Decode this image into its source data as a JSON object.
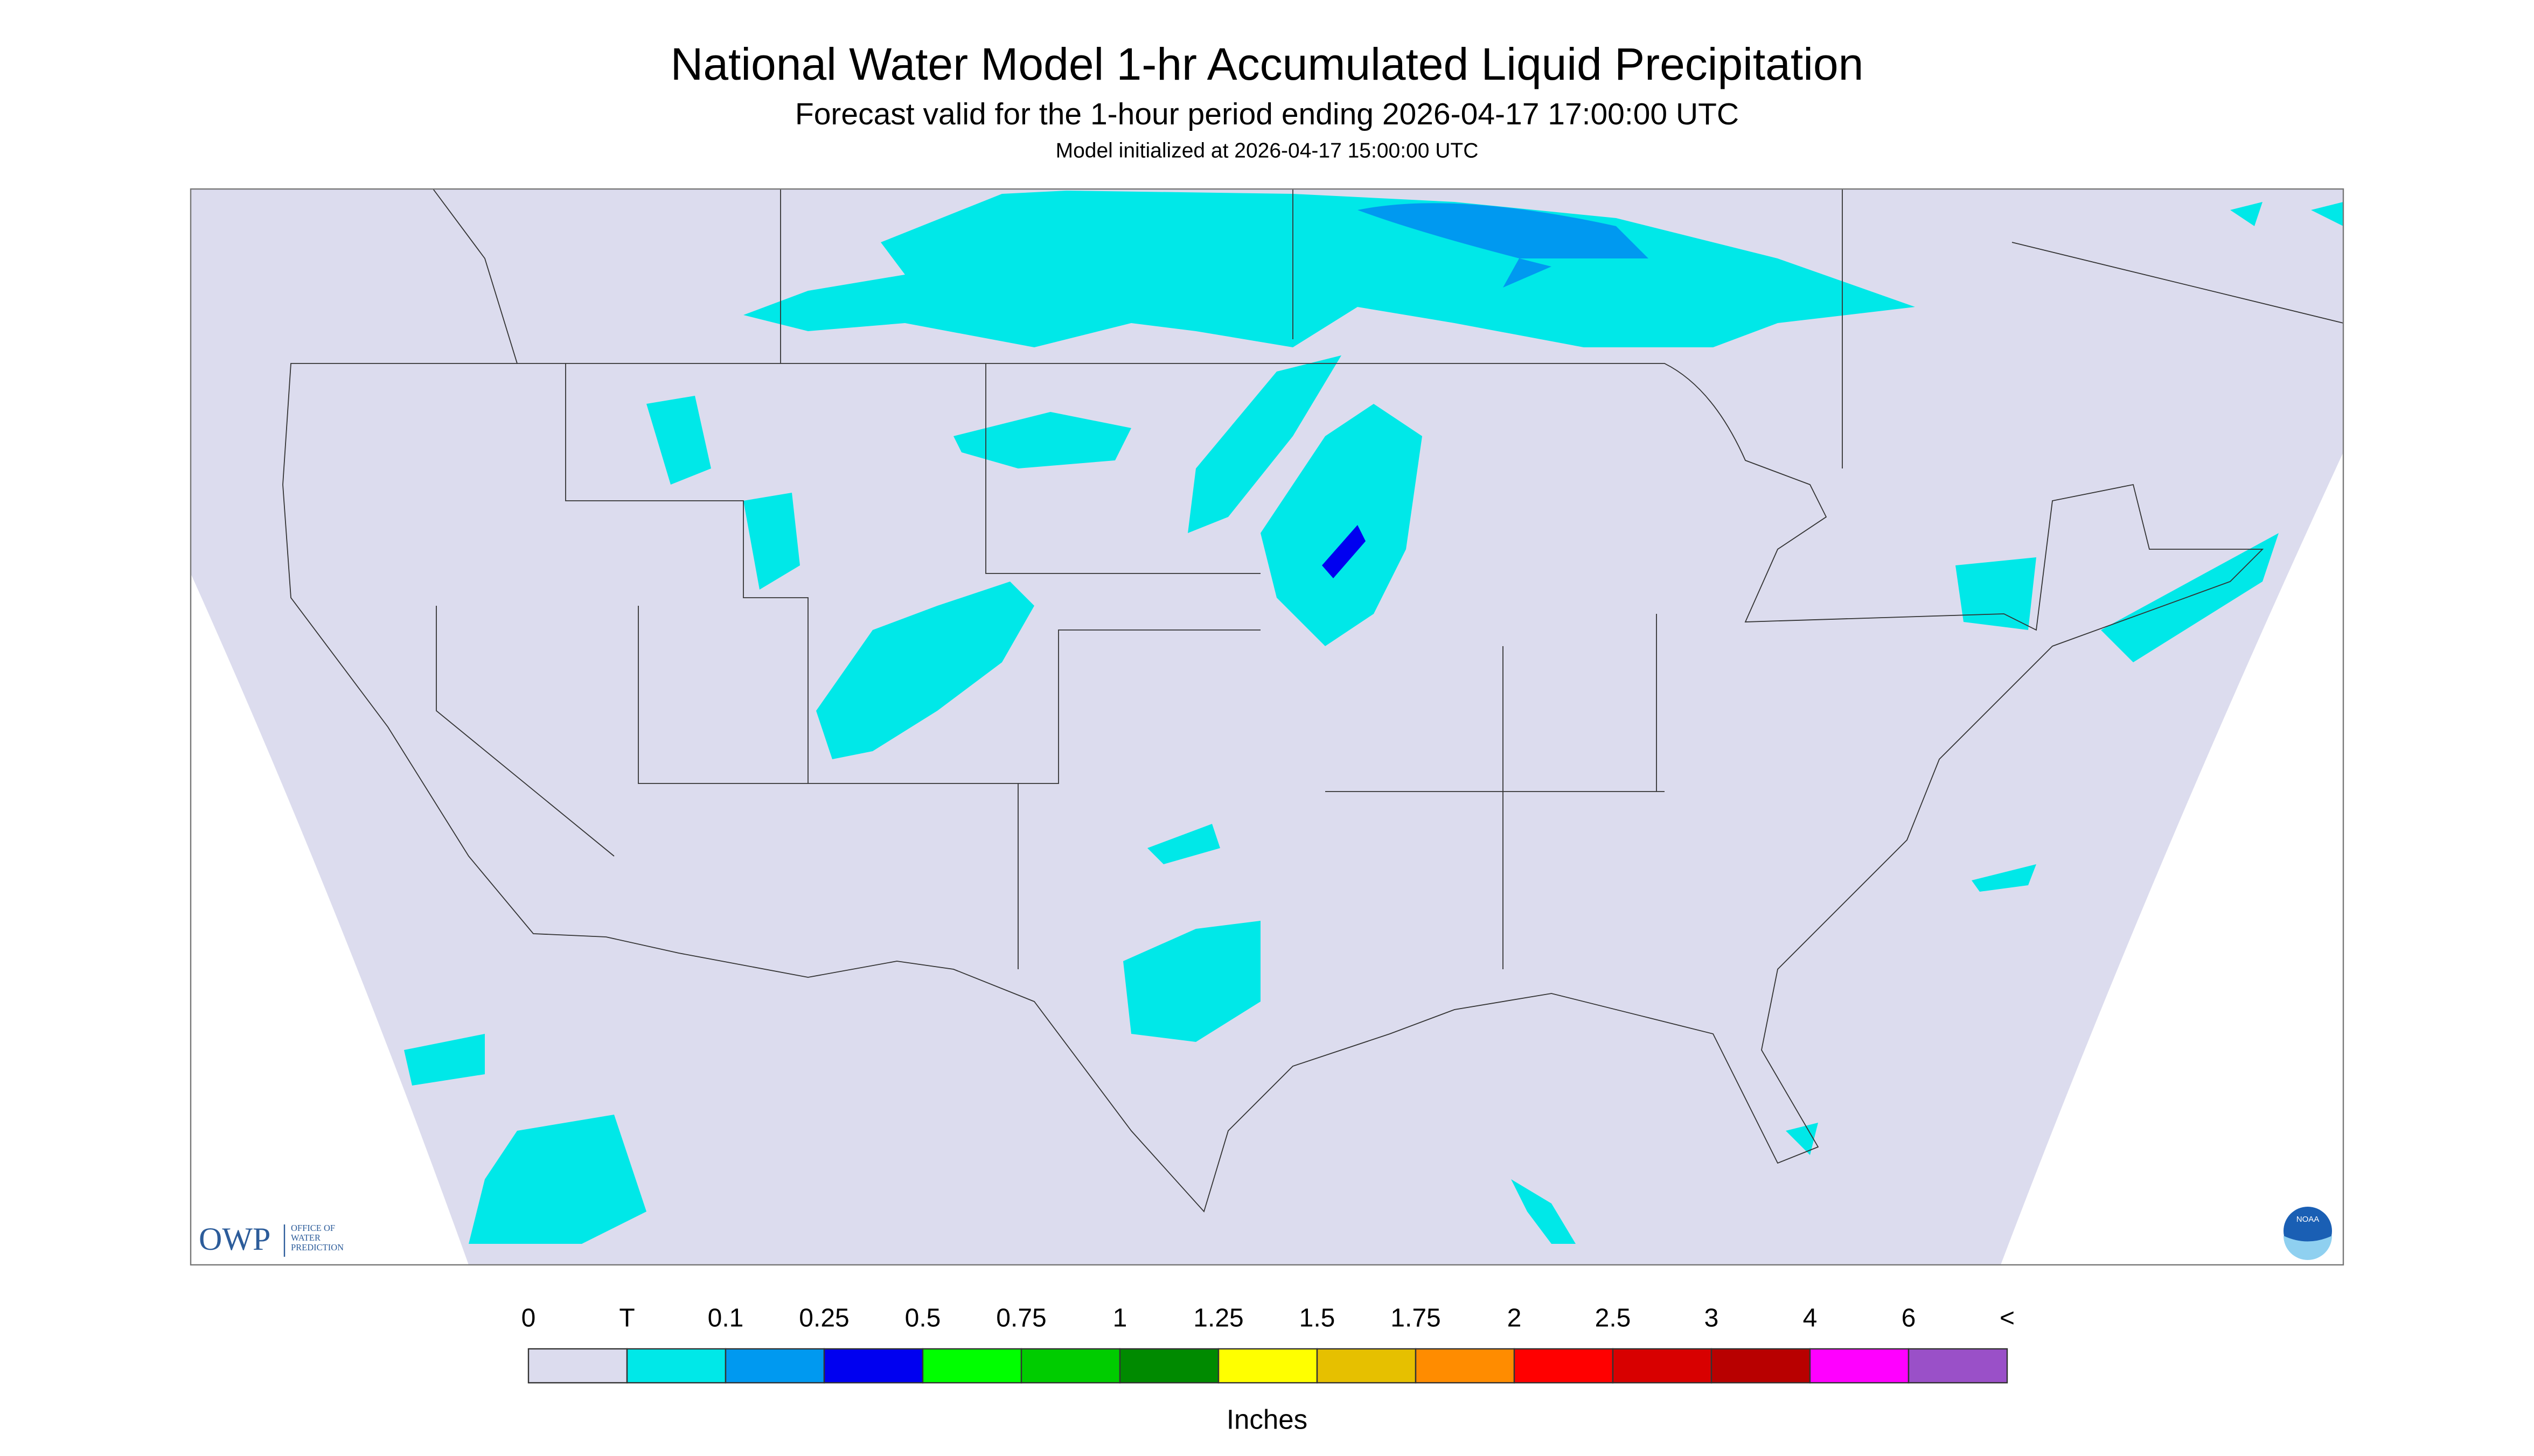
{
  "header": {
    "title": "National Water Model 1-hr Accumulated Liquid Precipitation",
    "subtitle": "Forecast valid for the 1-hour period ending 2026-04-17 17:00:00 UTC",
    "initialized": "Model initialized at 2026-04-17 15:00:00 UTC"
  },
  "logos": {
    "owp": "OWP",
    "owp_full": [
      "OFFICE OF",
      "WATER",
      "PREDICTION"
    ],
    "noaa": "NOAA"
  },
  "legend": {
    "unit": "Inches",
    "labels": [
      "0",
      "T",
      "0.1",
      "0.25",
      "0.5",
      "0.75",
      "1",
      "1.25",
      "1.5",
      "1.75",
      "2",
      "2.5",
      "3",
      "4",
      "6",
      "<"
    ],
    "colors": [
      "#dcdcee",
      "#00e8e8",
      "#0099f0",
      "#0000f0",
      "#00ff00",
      "#00cc00",
      "#008a00",
      "#ffff00",
      "#e6c000",
      "#ff8c00",
      "#ff0000",
      "#d80000",
      "#b80000",
      "#ff00ff",
      "#9a50c8"
    ]
  }
}
